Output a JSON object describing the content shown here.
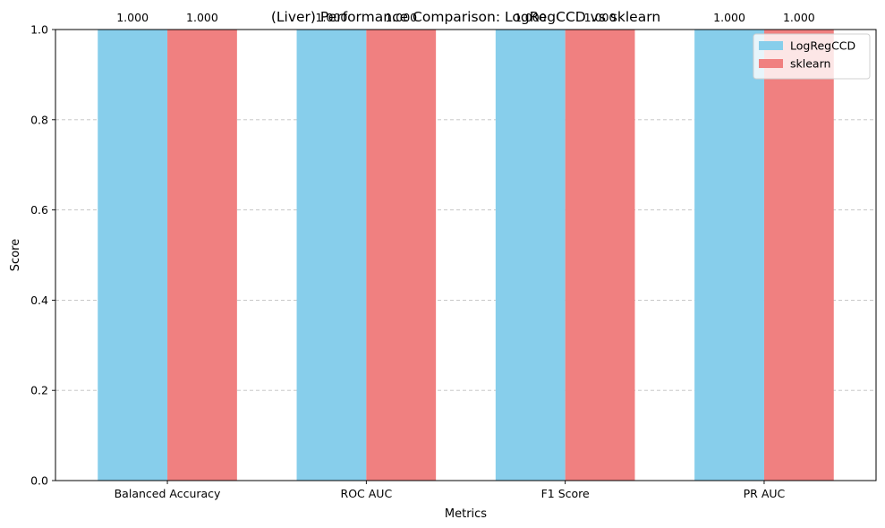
{
  "chart_data": {
    "type": "bar",
    "title": "(Liver) Performance Comparison: LogRegCCD vs sklearn",
    "xlabel": "Metrics",
    "ylabel": "Score",
    "categories": [
      "Balanced Accuracy",
      "ROC AUC",
      "F1 Score",
      "PR AUC"
    ],
    "series": [
      {
        "name": "LogRegCCD",
        "color": "#87ceeb",
        "values": [
          1.0,
          1.0,
          1.0,
          1.0
        ],
        "labels": [
          "1.000",
          "1.000",
          "1.000",
          "1.000"
        ]
      },
      {
        "name": "sklearn",
        "color": "#f08080",
        "values": [
          1.0,
          1.0,
          1.0,
          1.0
        ],
        "labels": [
          "1.000",
          "1.000",
          "1.000",
          "1.000"
        ]
      }
    ],
    "ylim": [
      0,
      1.0
    ],
    "yticks": [
      0.0,
      0.2,
      0.4,
      0.6,
      0.8,
      1.0
    ],
    "ytick_labels": [
      "0.0",
      "0.2",
      "0.4",
      "0.6",
      "0.8",
      "1.0"
    ],
    "grid": "y-dashed",
    "legend_position": "top-right"
  }
}
